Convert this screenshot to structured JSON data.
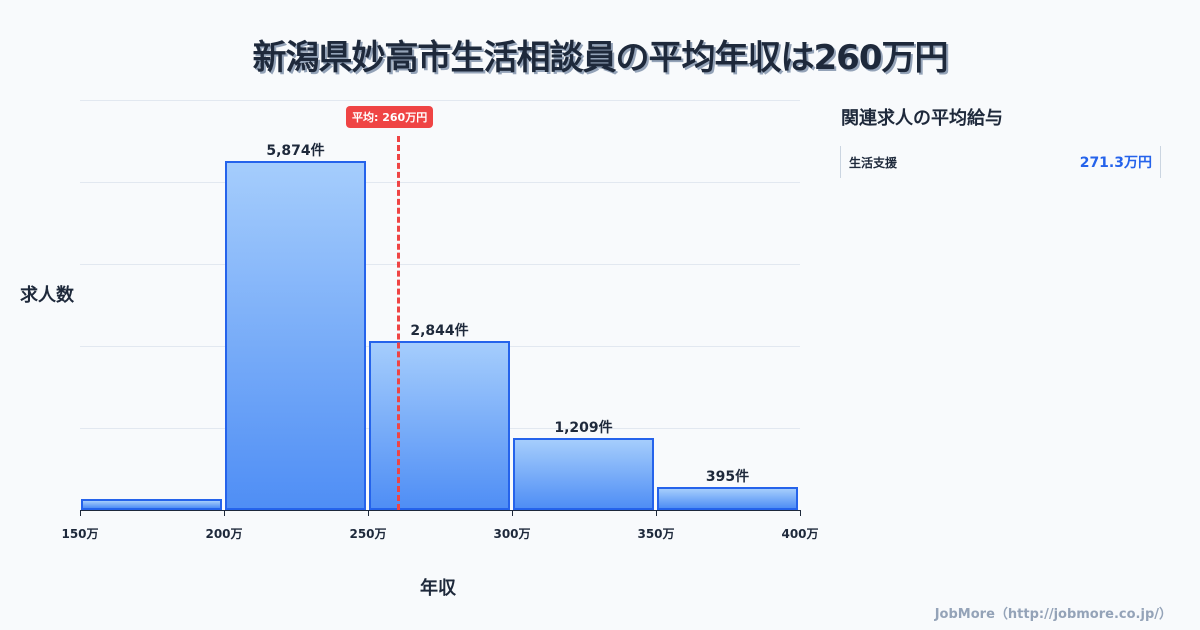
{
  "title": "新潟県妙高市生活相談員の平均年収は260万円",
  "chart_data": {
    "type": "bar",
    "title": "新潟県妙高市生活相談員の平均年収は260万円",
    "xlabel": "年収",
    "ylabel": "求人数",
    "bins": [
      [
        150,
        200
      ],
      [
        200,
        250
      ],
      [
        250,
        300
      ],
      [
        300,
        350
      ],
      [
        350,
        400
      ]
    ],
    "categories": [
      "150万-200万",
      "200万-250万",
      "250万-300万",
      "300万-350万",
      "350万-400万"
    ],
    "values": [
      185,
      5874,
      2844,
      1209,
      395
    ],
    "value_labels": [
      "",
      "5,874件",
      "2,844件",
      "1,209件",
      "395件"
    ],
    "x_ticks": [
      "150万",
      "200万",
      "250万",
      "300万",
      "350万",
      "400万"
    ],
    "ylim": [
      0,
      6900
    ],
    "grid": true,
    "mean_line": {
      "value": 260,
      "label": "平均: 260万円",
      "color": "#ef4444"
    },
    "bar_color": "#2563eb"
  },
  "sidebar": {
    "title": "関連求人の平均給与",
    "items": [
      {
        "name": "生活支援",
        "value": "271.3万円"
      }
    ]
  },
  "footer": "JobMore（http://jobmore.co.jp/）"
}
